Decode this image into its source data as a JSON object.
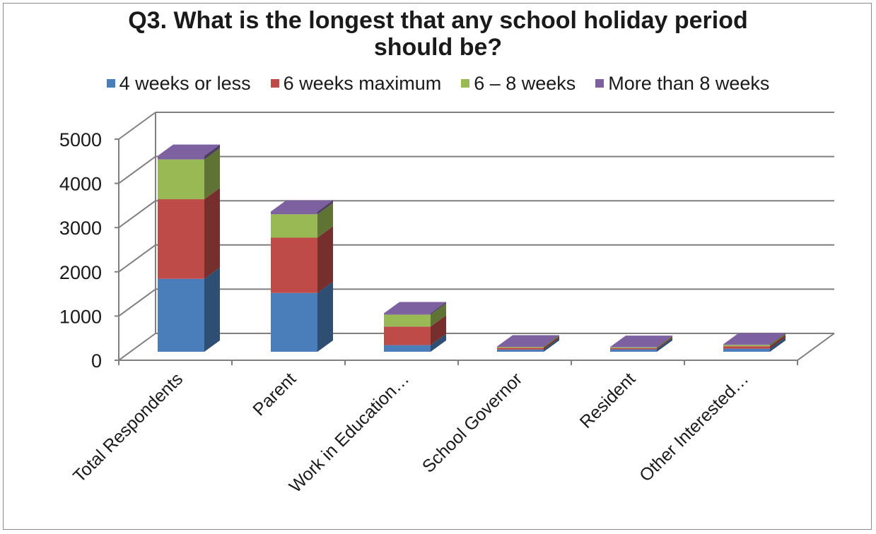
{
  "chart_data": {
    "type": "bar",
    "stacked": true,
    "three_d": true,
    "title_line1": "Q3. What is the longest that any school holiday period",
    "title_line2": "should be?",
    "categories": [
      "Total Respondents",
      "Parent",
      "Work in Education…",
      "School Governor",
      "Resident",
      "Other Interested…"
    ],
    "series": [
      {
        "name": "4 weeks or less",
        "color": "#4a7ebb",
        "values": [
          1650,
          1330,
          150,
          50,
          55,
          70
        ]
      },
      {
        "name": "6 weeks maximum",
        "color": "#be4b48",
        "values": [
          1800,
          1250,
          420,
          40,
          25,
          55
        ]
      },
      {
        "name": "6 – 8 weeks",
        "color": "#98b954",
        "values": [
          900,
          530,
          270,
          20,
          20,
          30
        ]
      },
      {
        "name": "More than 8 weeks",
        "color": "#7d60a0",
        "values": [
          80,
          60,
          30,
          10,
          10,
          15
        ]
      }
    ],
    "yticks": [
      "0",
      "1000",
      "2000",
      "3000",
      "4000",
      "5000"
    ],
    "ylim": [
      0,
      5000
    ],
    "grid": true,
    "legend_position": "top"
  }
}
